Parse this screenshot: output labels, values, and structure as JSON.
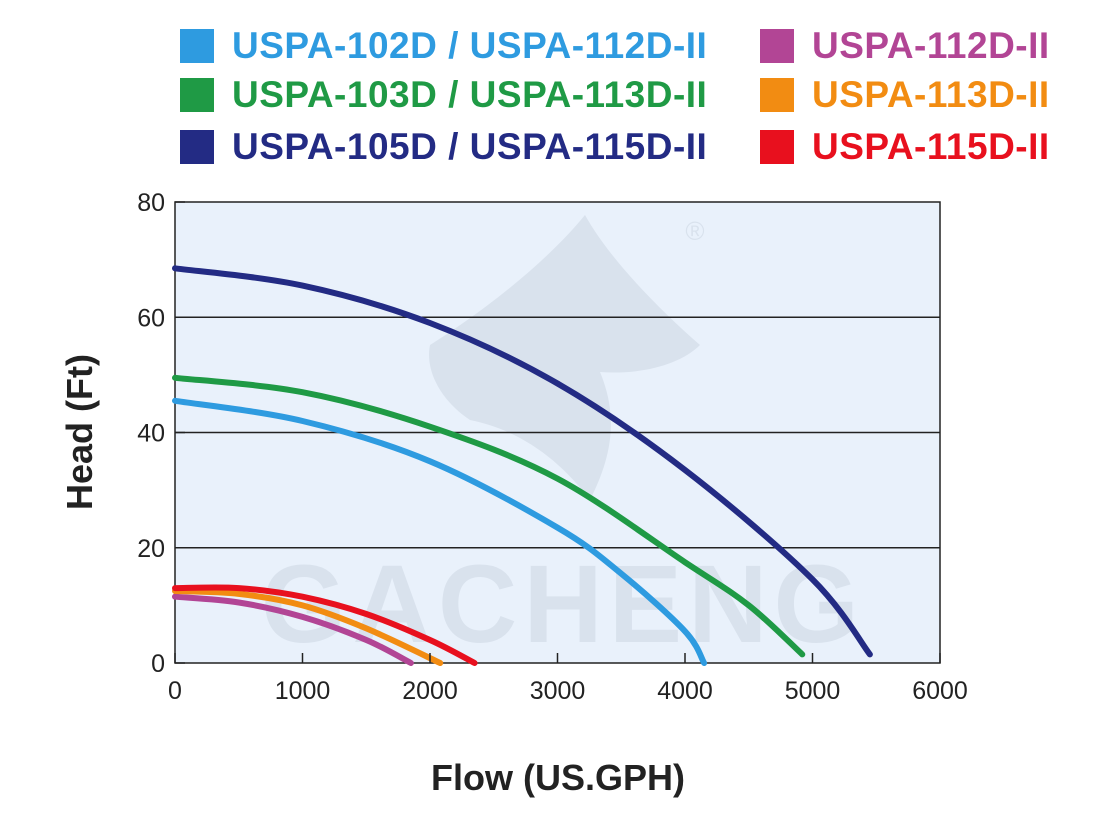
{
  "chart_data": {
    "type": "line",
    "xlabel": "Flow (US.GPH)",
    "ylabel": "Head (Ft)",
    "xlim": [
      0,
      6000
    ],
    "ylim": [
      0,
      80
    ],
    "x_ticks": [
      0,
      1000,
      2000,
      3000,
      4000,
      5000,
      6000
    ],
    "y_ticks": [
      0,
      20,
      40,
      60,
      80
    ],
    "grid": "horizontal",
    "legend_position": "top",
    "background_color": "#e9f1fb",
    "series": [
      {
        "name": "USPA-102D / USPA-112D-II",
        "color": "#2e9be0",
        "x": [
          0,
          1000,
          2000,
          3000,
          3500,
          4000,
          4150
        ],
        "y": [
          45.5,
          42,
          35,
          23.5,
          15.5,
          5.5,
          0
        ]
      },
      {
        "name": "USPA-103D / USPA-113D-II",
        "color": "#1f9a45",
        "x": [
          0,
          1000,
          2000,
          3000,
          4000,
          4500,
          4920
        ],
        "y": [
          49.5,
          47,
          41,
          32,
          17.5,
          10,
          1.5
        ]
      },
      {
        "name": "USPA-105D / USPA-115D-II",
        "color": "#232b84",
        "x": [
          0,
          1000,
          2000,
          3000,
          4000,
          5000,
          5450
        ],
        "y": [
          68.5,
          65.5,
          59,
          48.5,
          33.5,
          14.5,
          1.5
        ]
      },
      {
        "name": "USPA-112D-II",
        "color": "#b24595",
        "x": [
          0,
          500,
          1000,
          1500,
          1850
        ],
        "y": [
          11.5,
          10.5,
          8,
          4,
          0
        ]
      },
      {
        "name": "USPA-113D-II",
        "color": "#f28c12",
        "x": [
          0,
          500,
          1000,
          1500,
          2080
        ],
        "y": [
          12.5,
          12,
          10,
          6,
          0
        ]
      },
      {
        "name": "USPA-115D-II",
        "color": "#e8101e",
        "x": [
          0,
          500,
          1000,
          1500,
          2000,
          2350
        ],
        "y": [
          13,
          13,
          11.5,
          8.5,
          4,
          0
        ]
      }
    ]
  },
  "legend": {
    "items": [
      {
        "label": "USPA-102D / USPA-112D-II",
        "color": "#2e9be0"
      },
      {
        "label": "USPA-112D-II",
        "color": "#b24595"
      },
      {
        "label": "USPA-103D / USPA-113D-II",
        "color": "#1f9a45"
      },
      {
        "label": "USPA-113D-II",
        "color": "#f28c12"
      },
      {
        "label": "USPA-105D / USPA-115D-II",
        "color": "#232b84"
      },
      {
        "label": "USPA-115D-II",
        "color": "#e8101e"
      }
    ]
  },
  "watermark": {
    "text": "GACHENG"
  }
}
